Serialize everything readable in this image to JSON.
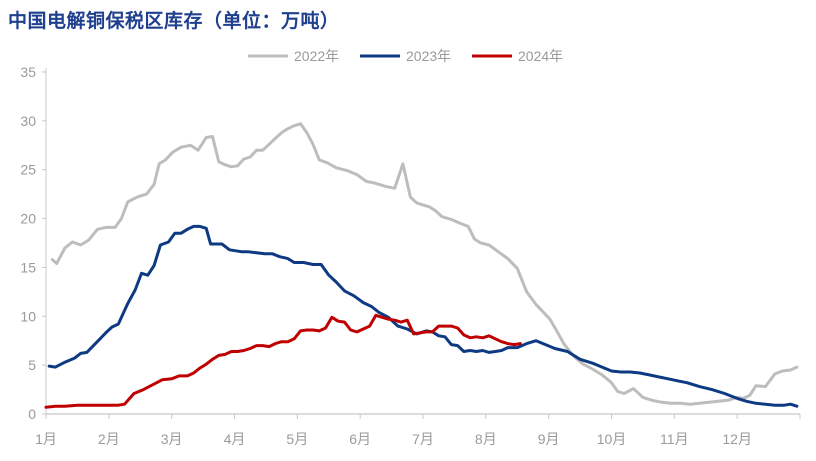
{
  "title": "中国电解铜保税区库存（单位：万吨）",
  "colors": {
    "title": "#1f3f8f",
    "axis": "#c8c8c8",
    "tick": "#9a9a9a"
  },
  "chart_data": {
    "type": "line",
    "title": "中国电解铜保税区库存（单位：万吨）",
    "xlabel": "",
    "ylabel": "",
    "ylim": [
      0,
      35
    ],
    "yticks": [
      0,
      5,
      10,
      15,
      20,
      25,
      30,
      35
    ],
    "xlim": [
      1,
      13
    ],
    "xticks": [
      1,
      2,
      3,
      4,
      5,
      6,
      7,
      8,
      9,
      10,
      11,
      12
    ],
    "xtick_labels": [
      "1月",
      "2月",
      "3月",
      "4月",
      "5月",
      "6月",
      "7月",
      "8月",
      "9月",
      "10月",
      "11月",
      "12月"
    ],
    "grid": false,
    "legend": "top-center",
    "series": [
      {
        "name": "2022年",
        "color": "#bdbdbd",
        "x": [
          1.1,
          1.17,
          1.3,
          1.42,
          1.55,
          1.68,
          1.82,
          1.95,
          2.1,
          2.2,
          2.3,
          2.45,
          2.6,
          2.72,
          2.8,
          2.9,
          3.02,
          3.15,
          3.3,
          3.42,
          3.55,
          3.65,
          3.75,
          3.85,
          3.95,
          4.05,
          4.15,
          4.25,
          4.35,
          4.45,
          4.55,
          4.65,
          4.75,
          4.85,
          4.95,
          5.05,
          5.15,
          5.25,
          5.35,
          5.48,
          5.62,
          5.8,
          5.95,
          6.1,
          6.25,
          6.4,
          6.55,
          6.68,
          6.8,
          6.9,
          7.0,
          7.1,
          7.2,
          7.3,
          7.45,
          7.6,
          7.72,
          7.82,
          7.92,
          8.05,
          8.2,
          8.35,
          8.5,
          8.65,
          8.8,
          8.92,
          9.02,
          9.12,
          9.25,
          9.4,
          9.55,
          9.7,
          9.85,
          10.0,
          10.1,
          10.2,
          10.35,
          10.5,
          10.65,
          10.8,
          10.95,
          11.1,
          11.25,
          11.4,
          11.55,
          11.7,
          11.85,
          12.0,
          12.1,
          12.2,
          12.3,
          12.45,
          12.6,
          12.72,
          12.85,
          12.95
        ],
        "values": [
          15.8,
          15.4,
          17.0,
          17.6,
          17.3,
          17.8,
          18.9,
          19.1,
          19.1,
          20.0,
          21.7,
          22.2,
          22.5,
          23.5,
          25.6,
          26.0,
          26.8,
          27.3,
          27.5,
          27.0,
          28.3,
          28.4,
          25.8,
          25.5,
          25.3,
          25.4,
          26.1,
          26.3,
          27.0,
          27.0,
          27.6,
          28.2,
          28.8,
          29.2,
          29.5,
          29.7,
          28.8,
          27.6,
          26.0,
          25.7,
          25.2,
          24.9,
          24.5,
          23.8,
          23.6,
          23.3,
          23.1,
          25.6,
          22.2,
          21.6,
          21.4,
          21.2,
          20.8,
          20.2,
          19.9,
          19.5,
          19.2,
          17.9,
          17.5,
          17.3,
          16.6,
          15.9,
          14.9,
          12.5,
          11.2,
          10.4,
          9.7,
          8.6,
          7.1,
          5.9,
          5.1,
          4.6,
          4.0,
          3.2,
          2.3,
          2.1,
          2.6,
          1.7,
          1.4,
          1.2,
          1.1,
          1.1,
          1.0,
          1.1,
          1.2,
          1.3,
          1.4,
          1.7,
          1.6,
          1.9,
          2.9,
          2.8,
          4.1,
          4.4,
          4.5,
          4.8
        ]
      },
      {
        "name": "2023年",
        "color": "#0d3a82",
        "x": [
          1.05,
          1.15,
          1.3,
          1.45,
          1.55,
          1.65,
          1.8,
          1.95,
          2.05,
          2.15,
          2.3,
          2.42,
          2.52,
          2.62,
          2.72,
          2.82,
          2.95,
          3.05,
          3.15,
          3.25,
          3.35,
          3.45,
          3.55,
          3.62,
          3.7,
          3.8,
          3.92,
          4.02,
          4.12,
          4.22,
          4.35,
          4.48,
          4.6,
          4.72,
          4.85,
          4.95,
          5.1,
          5.25,
          5.38,
          5.5,
          5.62,
          5.75,
          5.9,
          6.05,
          6.18,
          6.3,
          6.45,
          6.6,
          6.75,
          6.9,
          7.05,
          7.15,
          7.25,
          7.35,
          7.45,
          7.55,
          7.65,
          7.75,
          7.85,
          7.95,
          8.05,
          8.15,
          8.25,
          8.35,
          8.5,
          8.65,
          8.8,
          8.95,
          9.1,
          9.3,
          9.5,
          9.7,
          9.85,
          10.0,
          10.15,
          10.3,
          10.45,
          10.6,
          10.75,
          10.9,
          11.05,
          11.2,
          11.4,
          11.6,
          11.8,
          12.0,
          12.15,
          12.3,
          12.45,
          12.6,
          12.75,
          12.85,
          12.95
        ],
        "values": [
          4.9,
          4.8,
          5.3,
          5.7,
          6.2,
          6.3,
          7.3,
          8.3,
          8.9,
          9.2,
          11.3,
          12.7,
          14.4,
          14.2,
          15.2,
          17.3,
          17.6,
          18.5,
          18.5,
          18.9,
          19.2,
          19.2,
          19.0,
          17.4,
          17.4,
          17.4,
          16.8,
          16.7,
          16.6,
          16.6,
          16.5,
          16.4,
          16.4,
          16.1,
          15.9,
          15.5,
          15.5,
          15.3,
          15.3,
          14.2,
          13.5,
          12.6,
          12.1,
          11.4,
          11.0,
          10.4,
          9.9,
          9.0,
          8.7,
          8.2,
          8.5,
          8.4,
          8.0,
          7.9,
          7.1,
          7.0,
          6.4,
          6.5,
          6.4,
          6.5,
          6.3,
          6.4,
          6.5,
          6.8,
          6.8,
          7.2,
          7.5,
          7.1,
          6.7,
          6.4,
          5.6,
          5.2,
          4.8,
          4.4,
          4.3,
          4.3,
          4.2,
          4.0,
          3.8,
          3.6,
          3.4,
          3.2,
          2.8,
          2.5,
          2.1,
          1.6,
          1.3,
          1.1,
          1.0,
          0.9,
          0.9,
          1.0,
          0.8
        ]
      },
      {
        "name": "2024年",
        "color": "#c00000",
        "x": [
          1.0,
          1.15,
          1.3,
          1.5,
          1.7,
          1.9,
          2.05,
          2.15,
          2.25,
          2.4,
          2.55,
          2.7,
          2.85,
          3.0,
          3.12,
          3.25,
          3.35,
          3.45,
          3.55,
          3.65,
          3.75,
          3.85,
          3.95,
          4.05,
          4.15,
          4.25,
          4.35,
          4.45,
          4.55,
          4.65,
          4.75,
          4.85,
          4.95,
          5.05,
          5.15,
          5.25,
          5.35,
          5.45,
          5.55,
          5.65,
          5.75,
          5.85,
          5.95,
          6.05,
          6.15,
          6.25,
          6.35,
          6.45,
          6.55,
          6.65,
          6.75,
          6.85,
          6.95,
          7.05,
          7.15,
          7.25,
          7.35,
          7.45,
          7.55,
          7.65,
          7.75,
          7.85,
          7.95,
          8.05,
          8.15,
          8.25,
          8.35,
          8.45,
          8.55
        ],
        "values": [
          0.7,
          0.8,
          0.8,
          0.9,
          0.9,
          0.9,
          0.9,
          0.9,
          1.0,
          2.1,
          2.5,
          3.0,
          3.5,
          3.6,
          3.9,
          3.9,
          4.2,
          4.7,
          5.1,
          5.6,
          6.0,
          6.1,
          6.4,
          6.4,
          6.5,
          6.7,
          7.0,
          7.0,
          6.9,
          7.2,
          7.4,
          7.4,
          7.7,
          8.5,
          8.6,
          8.6,
          8.5,
          8.8,
          9.9,
          9.5,
          9.4,
          8.6,
          8.4,
          8.7,
          9.0,
          10.1,
          9.9,
          9.7,
          9.6,
          9.4,
          9.6,
          8.2,
          8.3,
          8.4,
          8.4,
          9.0,
          9.0,
          9.0,
          8.8,
          8.1,
          7.8,
          7.9,
          7.8,
          8.0,
          7.7,
          7.4,
          7.2,
          7.1,
          7.2
        ]
      }
    ]
  }
}
